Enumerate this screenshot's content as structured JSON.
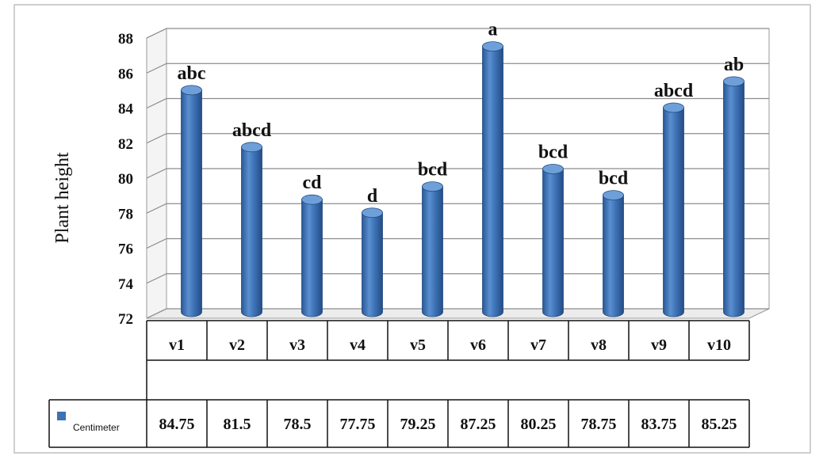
{
  "chart_data": {
    "type": "bar",
    "ylabel": "Plant height",
    "ylim": [
      72,
      88
    ],
    "yticks": [
      72,
      74,
      76,
      78,
      80,
      82,
      84,
      86,
      88
    ],
    "categories": [
      "v1",
      "v2",
      "v3",
      "v4",
      "v5",
      "v6",
      "v7",
      "v8",
      "v9",
      "v10"
    ],
    "series": [
      {
        "name": "Centimeter",
        "color": "#3d72b4",
        "values": [
          84.75,
          81.5,
          78.5,
          77.75,
          79.25,
          87.25,
          80.25,
          78.75,
          83.75,
          85.25
        ],
        "value_labels": [
          "84.75",
          "81.5",
          "78.5",
          "77.75",
          "79.25",
          "87.25",
          "80.25",
          "78.75",
          "83.75",
          "85.25"
        ]
      }
    ],
    "significance_letters": [
      "abc",
      "abcd",
      "cd",
      "d",
      "bcd",
      "a",
      "bcd",
      "bcd",
      "abcd",
      "ab"
    ],
    "grid": true,
    "legend": "data-table-left"
  }
}
